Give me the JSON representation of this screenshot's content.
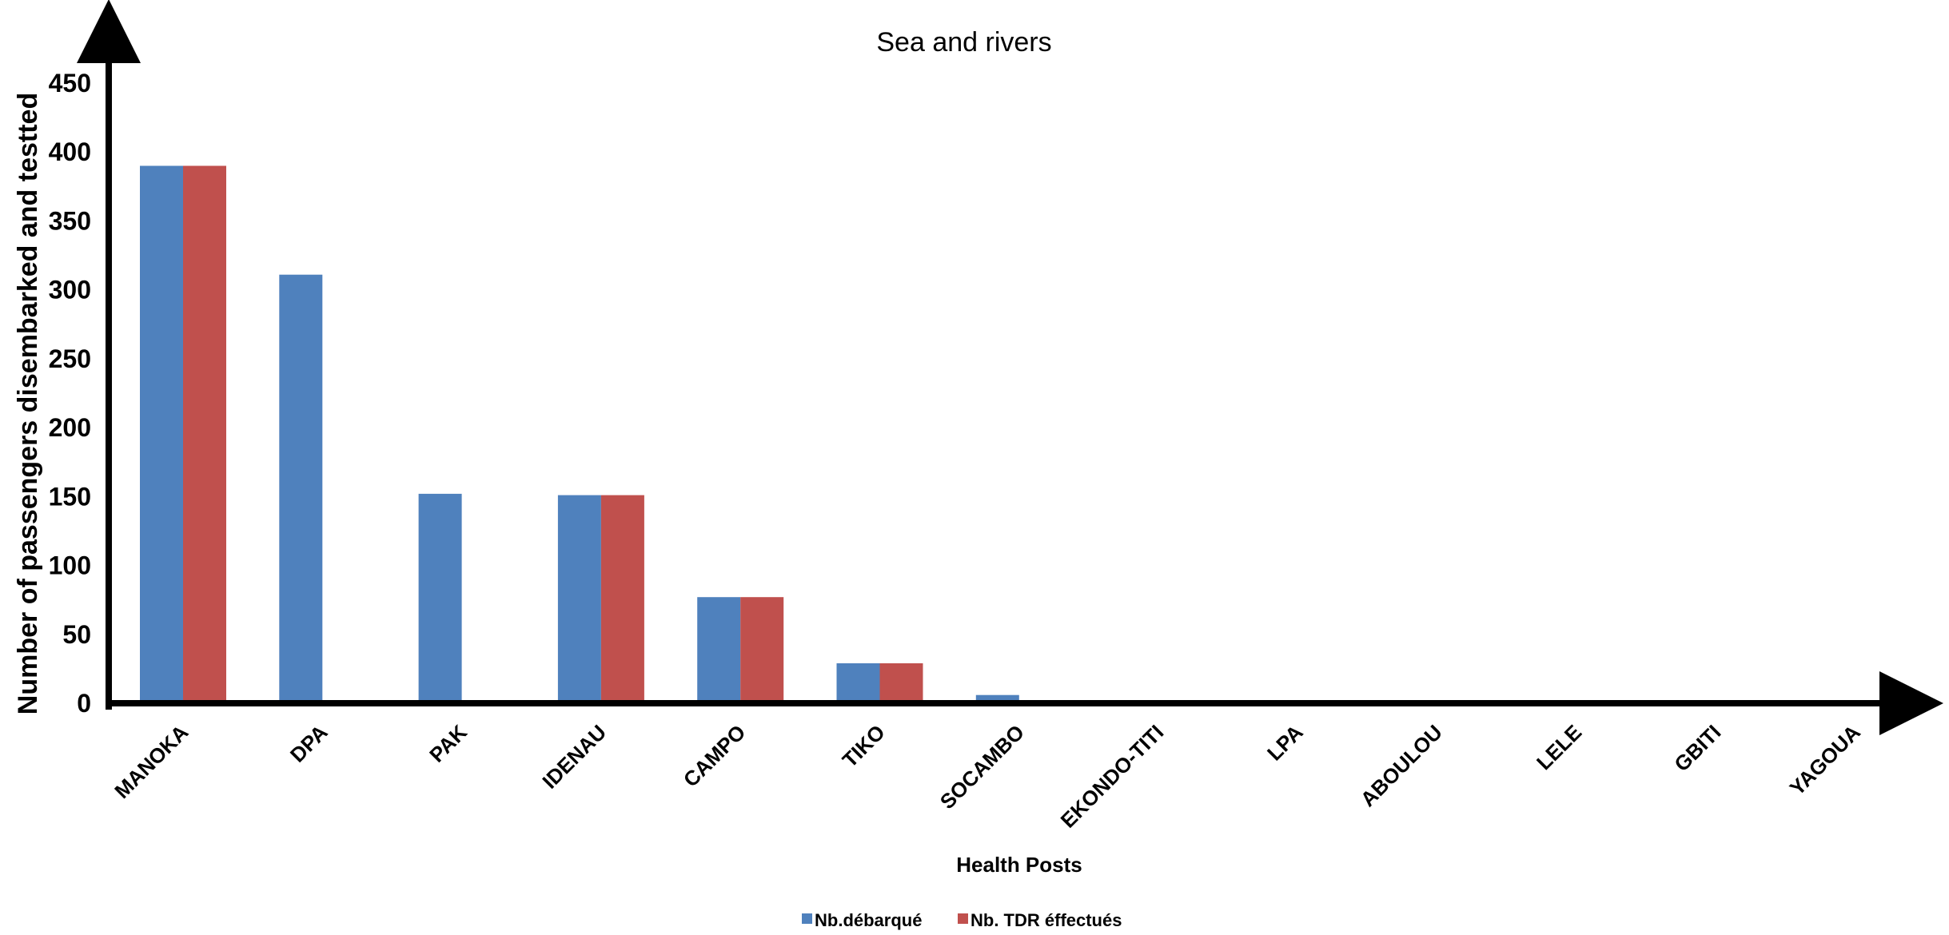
{
  "chart_data": {
    "type": "bar",
    "title": "Sea and rivers",
    "xlabel": "Health Posts",
    "ylabel": "Number of passengers disembarked and testted",
    "categories": [
      "MANOKA",
      "DPA",
      "PAK",
      "IDENAU",
      "CAMPO",
      "TIKO",
      "SOCAMBO",
      "EKONDO-TITI",
      "LPA",
      "ABOULOU",
      "LELE",
      "GBITI",
      "YAGOUA"
    ],
    "series": [
      {
        "name": "Nb.débarqué",
        "color": "#4F81BD",
        "values": [
          390,
          311,
          152,
          151,
          77,
          29,
          6,
          0,
          0,
          0,
          0,
          0,
          0
        ]
      },
      {
        "name": "Nb. TDR éffectués",
        "color": "#C0504D",
        "values": [
          390,
          0,
          0,
          151,
          77,
          29,
          0,
          0,
          0,
          0,
          0,
          0,
          0
        ]
      }
    ],
    "yticks": [
      0,
      50,
      100,
      150,
      200,
      250,
      300,
      350,
      400,
      450
    ],
    "ylim": [
      0,
      450
    ],
    "grid": false,
    "legend_position": "bottom"
  }
}
